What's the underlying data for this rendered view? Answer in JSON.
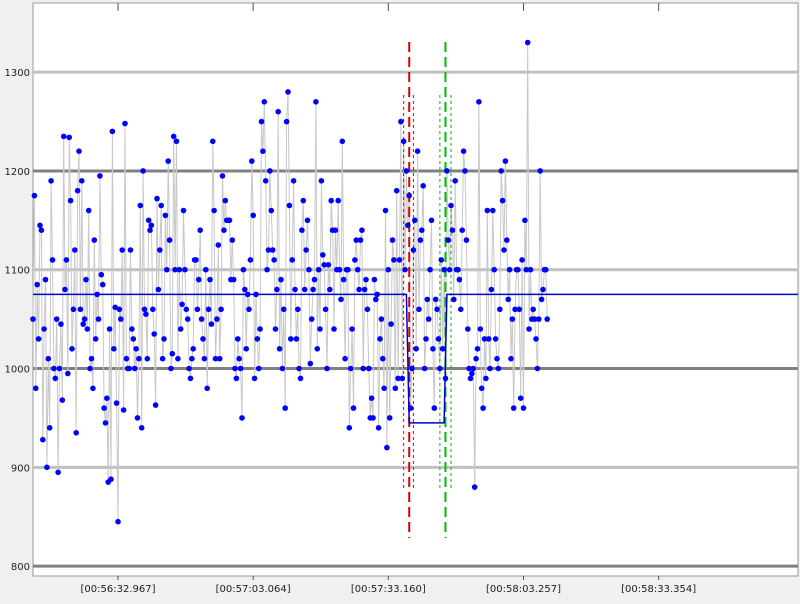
{
  "colors": {
    "background": "#f0f0f0",
    "plot_background": "#ffffff",
    "major_grid": "#808080",
    "minor_grid": "#c0c0c0",
    "points": "#0000ff",
    "connector": "#c8c8c8",
    "mean_line": "#0000cc",
    "red_marker": "#dd0000",
    "green_marker": "#00bb00"
  },
  "chart_data": {
    "type": "line",
    "grid": true,
    "legend": "none",
    "ylim": [
      790,
      1370
    ],
    "xlim": [
      0,
      549
    ],
    "y_ticks": [
      {
        "value": 800,
        "label": "800",
        "major": true
      },
      {
        "value": 900,
        "label": "900",
        "major": false
      },
      {
        "value": 1000,
        "label": "1000",
        "major": true
      },
      {
        "value": 1100,
        "label": "1100",
        "major": false
      },
      {
        "value": 1200,
        "label": "1200",
        "major": true
      },
      {
        "value": 1300,
        "label": "1300",
        "major": false
      }
    ],
    "x_ticks": [
      {
        "value": 61,
        "label": "[00:56:32.967]"
      },
      {
        "value": 158,
        "label": "[00:57:03.064]"
      },
      {
        "value": 255,
        "label": "[00:57:33.160]"
      },
      {
        "value": 352,
        "label": "[00:58:03.257]"
      },
      {
        "value": 449,
        "label": "[00:58:33.354]"
      }
    ],
    "series": [
      {
        "values": [
          1050,
          1175,
          980,
          1085,
          1030,
          1145,
          1140,
          928,
          1040,
          1090,
          900,
          1010,
          940,
          1190,
          1110,
          1000,
          990,
          1050,
          895,
          1000,
          1045,
          968,
          1235,
          1080,
          1110,
          995,
          1234,
          1170,
          1020,
          1060,
          1120,
          935,
          1180,
          1220,
          1060,
          1190,
          1045,
          1050,
          1090,
          1040,
          1160,
          1000,
          1010,
          980,
          1130,
          1030,
          1075,
          1050,
          1195,
          1095,
          1085,
          960,
          945,
          970,
          885,
          1040,
          888,
          1240,
          1020,
          1062,
          965,
          845,
          1060,
          1050,
          1120,
          958,
          1248,
          1010,
          1000,
          1000,
          1120,
          1040,
          1030,
          1000,
          1020,
          950,
          1010,
          1165,
          940,
          1200,
          1060,
          1055,
          1010,
          1150,
          1140,
          1145,
          1060,
          1035,
          963,
          1172,
          1080,
          1120,
          1165,
          1010,
          1030,
          1155,
          1100,
          1210,
          1130,
          1000,
          1015,
          1235,
          1100,
          1230,
          1010,
          1100,
          1040,
          1065,
          1160,
          1100,
          1060,
          1050,
          1000,
          990,
          1010,
          1020,
          1110,
          1110,
          1060,
          1090,
          1140,
          1050,
          1030,
          1010,
          1100,
          980,
          1060,
          1090,
          1045,
          1230,
          1160,
          1010,
          1050,
          1125,
          1010,
          1060,
          1195,
          1140,
          1170,
          1150,
          1150,
          1150,
          1090,
          1130,
          1090,
          1000,
          990,
          1030,
          1010,
          1000,
          950,
          1100,
          1080,
          1020,
          1075,
          1060,
          1110,
          1210,
          1155,
          990,
          1075,
          1030,
          1000,
          1040,
          1250,
          1220,
          1270,
          1190,
          1100,
          1120,
          1200,
          1160,
          1120,
          1110,
          1040,
          1080,
          1260,
          1020,
          1090,
          1000,
          1060,
          960,
          1250,
          1280,
          1165,
          1030,
          1110,
          1190,
          1080,
          1030,
          1060,
          1000,
          990,
          1140,
          1170,
          1080,
          1120,
          1150,
          1100,
          1005,
          1050,
          1080,
          1090,
          1270,
          1020,
          1100,
          1040,
          1190,
          1115,
          1105,
          1060,
          1000,
          1105,
          1080,
          1170,
          1140,
          1040,
          1140,
          1100,
          1170,
          1100,
          1070,
          1230,
          1090,
          1010,
          1100,
          1100,
          940,
          1000,
          1040,
          960,
          1110,
          1130,
          1100,
          1080,
          1130,
          1140,
          1000,
          1080,
          1090,
          1060,
          1000,
          950,
          970,
          950,
          1090,
          1070,
          1075,
          940,
          1030,
          1050,
          1010,
          980,
          1160,
          920,
          1100,
          950,
          1045,
          1130,
          1110,
          980,
          1180,
          990,
          1110,
          1250,
          990,
          1230,
          1100,
          1200,
          1145,
          1175,
          960,
          1000,
          1120,
          1150,
          1020,
          1220,
          1060,
          1130,
          1140,
          1185,
          1000,
          1030,
          1070,
          1050,
          1100,
          1150,
          1020,
          960,
          1070,
          1060,
          1030,
          1000,
          1110,
          1020,
          1100,
          990,
          1200,
          1130,
          1100,
          1165,
          1140,
          1070,
          1190,
          1100,
          1100,
          1090,
          1060,
          1140,
          1220,
          1200,
          1130,
          1040,
          1000,
          990,
          995,
          1000,
          880,
          1010,
          1020,
          1270,
          1040,
          980,
          960,
          1030,
          990,
          1160,
          1030,
          1000,
          1080,
          1160,
          1100,
          1030,
          1010,
          1000,
          1060,
          1200,
          1170,
          1120,
          1210,
          1130,
          1070,
          1100,
          1010,
          1050,
          960,
          1060,
          1100,
          1100,
          1060,
          970,
          1110,
          960,
          1150,
          1100,
          1330,
          1040,
          1100,
          1050,
          1060,
          1050,
          1030,
          1000,
          1050,
          1200,
          1070,
          1080,
          1100,
          1100,
          1050
        ],
        "markers": true
      }
    ],
    "step_line": [
      {
        "x": 0,
        "y": 1075
      },
      {
        "x": 268,
        "y": 1075
      },
      {
        "x": 270,
        "y": 945
      },
      {
        "x": 295,
        "y": 945
      },
      {
        "x": 297,
        "y": 1075
      },
      {
        "x": 549,
        "y": 1075
      }
    ],
    "vertical_markers": [
      {
        "color": "red",
        "x": 270,
        "style": "dashed",
        "width": 2
      },
      {
        "color": "red",
        "x": 266,
        "style": "dotted",
        "width": 1
      },
      {
        "color": "red",
        "x": 273,
        "style": "dotted",
        "width": 1
      },
      {
        "color": "green",
        "x": 296,
        "style": "dashed",
        "width": 2
      },
      {
        "color": "green",
        "x": 292,
        "style": "dotted",
        "width": 1
      },
      {
        "color": "green",
        "x": 300,
        "style": "dotted",
        "width": 1
      }
    ]
  }
}
